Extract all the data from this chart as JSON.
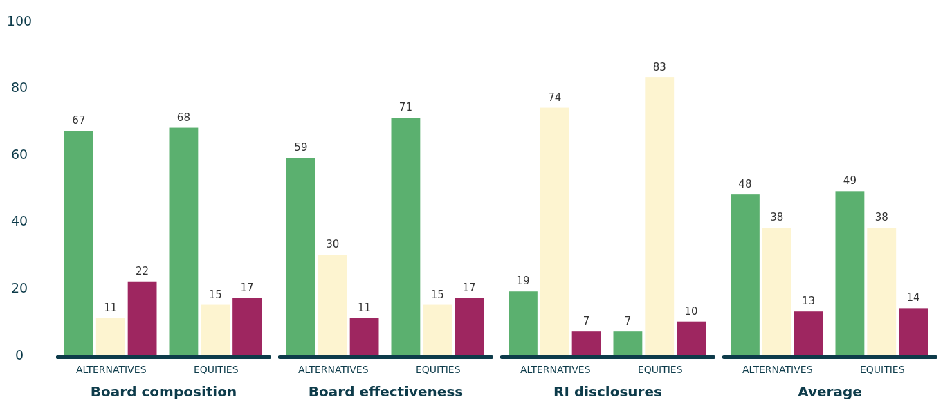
{
  "chart_data": {
    "type": "bar",
    "categories": [
      "ALTERNATIVES",
      "EQUITIES",
      "ALTERNATIVES",
      "EQUITIES",
      "ALTERNATIVES",
      "EQUITIES",
      "ALTERNATIVES",
      "EQUITIES"
    ],
    "series": [
      {
        "color": "#5bb06f",
        "values": [
          67,
          68,
          59,
          71,
          19,
          7,
          48,
          49
        ]
      },
      {
        "color": "#fdf4d0",
        "values": [
          11,
          15,
          30,
          15,
          74,
          83,
          38,
          38
        ]
      },
      {
        "color": "#9e2660",
        "values": [
          22,
          17,
          11,
          17,
          7,
          10,
          13,
          14
        ]
      }
    ],
    "annotations": [
      "Board composition",
      "Board effectiveness",
      "RI disclosures",
      "Average"
    ],
    "ylim": [
      0,
      100
    ],
    "yticks": [
      0,
      20,
      40,
      60,
      80,
      100
    ],
    "data_labels": true,
    "grid": false
  }
}
